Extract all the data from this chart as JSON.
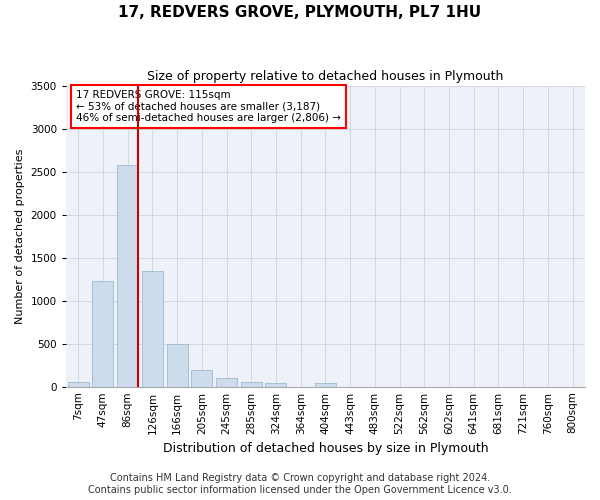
{
  "title_line1": "17, REDVERS GROVE, PLYMOUTH, PL7 1HU",
  "title_line2": "Size of property relative to detached houses in Plymouth",
  "xlabel": "Distribution of detached houses by size in Plymouth",
  "ylabel": "Number of detached properties",
  "bar_color": "#ccdcec",
  "bar_edge_color": "#a0b8cc",
  "background_color": "#eef2f8",
  "grid_color": "#d0d8e0",
  "categories": [
    "7sqm",
    "47sqm",
    "86sqm",
    "126sqm",
    "166sqm",
    "205sqm",
    "245sqm",
    "285sqm",
    "324sqm",
    "364sqm",
    "404sqm",
    "443sqm",
    "483sqm",
    "522sqm",
    "562sqm",
    "602sqm",
    "641sqm",
    "681sqm",
    "721sqm",
    "760sqm",
    "800sqm"
  ],
  "values": [
    50,
    1230,
    2580,
    1340,
    500,
    190,
    100,
    50,
    40,
    0,
    40,
    0,
    0,
    0,
    0,
    0,
    0,
    0,
    0,
    0,
    0
  ],
  "ylim": [
    0,
    3500
  ],
  "yticks": [
    0,
    500,
    1000,
    1500,
    2000,
    2500,
    3000,
    3500
  ],
  "vline_x": 2.4,
  "vline_color": "#cc0000",
  "annotation_box_text": "17 REDVERS GROVE: 115sqm\n← 53% of detached houses are smaller (3,187)\n46% of semi-detached houses are larger (2,806) →",
  "footnote": "Contains HM Land Registry data © Crown copyright and database right 2024.\nContains public sector information licensed under the Open Government Licence v3.0.",
  "footnote_fontsize": 7.0,
  "title1_fontsize": 11,
  "title2_fontsize": 9,
  "ylabel_fontsize": 8,
  "xlabel_fontsize": 9,
  "tick_fontsize": 7.5,
  "annot_fontsize": 7.5
}
